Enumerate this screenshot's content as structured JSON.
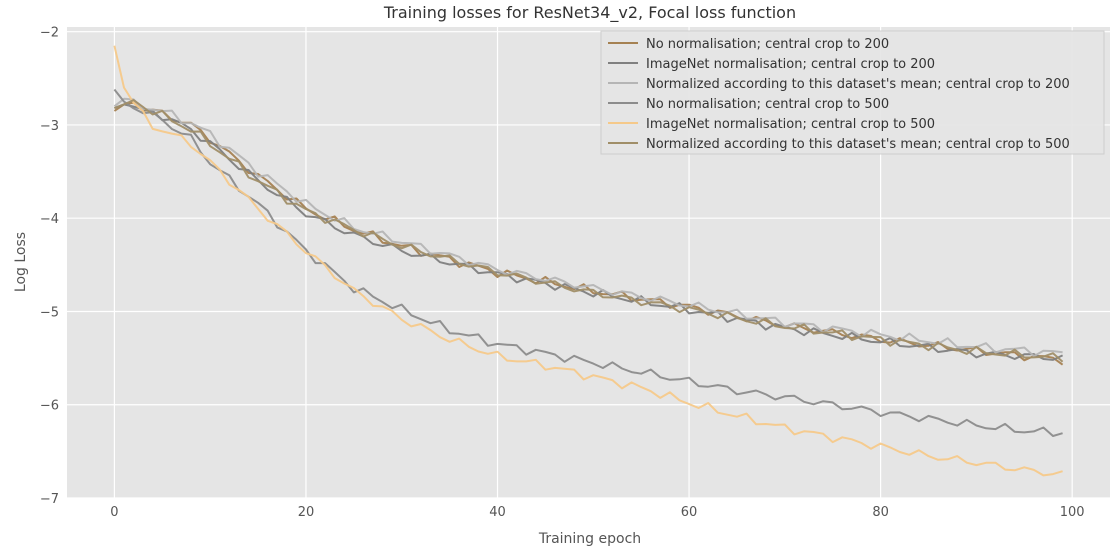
{
  "chart_data": {
    "type": "line",
    "title": "Training losses for ResNet34_v2, Focal loss function",
    "xlabel": "Training epoch",
    "ylabel": "Log Loss",
    "xlim": [
      -4.95,
      103.95
    ],
    "ylim": [
      -7,
      -1.95
    ],
    "xticks": [
      0,
      20,
      40,
      60,
      80,
      100
    ],
    "xtick_labels": [
      "0",
      "20",
      "40",
      "60",
      "80",
      "100"
    ],
    "yticks": [
      -7,
      -6,
      -5,
      -4,
      -3,
      -2
    ],
    "ytick_labels": [
      "−7",
      "−6",
      "−5",
      "−4",
      "−3",
      "−2"
    ],
    "grid": true,
    "legend_position": "top-right",
    "background": "#e5e5e5",
    "series": [
      {
        "name": "No normalisation;  central crop to 200",
        "color": "#a58152",
        "anchors": [
          [
            0,
            -2.85
          ],
          [
            1,
            -2.78
          ],
          [
            2,
            -2.75
          ],
          [
            3,
            -2.82
          ],
          [
            5,
            -2.88
          ],
          [
            8,
            -3.0
          ],
          [
            10,
            -3.15
          ],
          [
            15,
            -3.55
          ],
          [
            20,
            -3.9
          ],
          [
            25,
            -4.12
          ],
          [
            30,
            -4.3
          ],
          [
            40,
            -4.58
          ],
          [
            50,
            -4.78
          ],
          [
            60,
            -4.95
          ],
          [
            70,
            -5.15
          ],
          [
            80,
            -5.3
          ],
          [
            90,
            -5.42
          ],
          [
            99,
            -5.52
          ]
        ]
      },
      {
        "name": "ImageNet normalisation;  central crop to 200",
        "color": "#808080",
        "anchors": [
          [
            0,
            -2.82
          ],
          [
            1,
            -2.78
          ],
          [
            2,
            -2.8
          ],
          [
            3,
            -2.85
          ],
          [
            5,
            -2.9
          ],
          [
            8,
            -3.05
          ],
          [
            10,
            -3.2
          ],
          [
            15,
            -3.6
          ],
          [
            20,
            -3.95
          ],
          [
            25,
            -4.18
          ],
          [
            30,
            -4.35
          ],
          [
            40,
            -4.6
          ],
          [
            50,
            -4.8
          ],
          [
            60,
            -4.98
          ],
          [
            70,
            -5.18
          ],
          [
            80,
            -5.32
          ],
          [
            90,
            -5.45
          ],
          [
            99,
            -5.5
          ]
        ]
      },
      {
        "name": "Normalized according to this dataset's mean;  central crop to 200",
        "color": "#b5b5b5",
        "anchors": [
          [
            0,
            -2.8
          ],
          [
            1,
            -2.72
          ],
          [
            2,
            -2.78
          ],
          [
            3,
            -2.8
          ],
          [
            5,
            -2.85
          ],
          [
            8,
            -2.98
          ],
          [
            10,
            -3.1
          ],
          [
            15,
            -3.5
          ],
          [
            20,
            -3.85
          ],
          [
            25,
            -4.1
          ],
          [
            30,
            -4.25
          ],
          [
            40,
            -4.55
          ],
          [
            50,
            -4.75
          ],
          [
            60,
            -4.93
          ],
          [
            70,
            -5.12
          ],
          [
            80,
            -5.25
          ],
          [
            90,
            -5.38
          ],
          [
            99,
            -5.45
          ]
        ]
      },
      {
        "name": "No normalisation;  central crop to 500",
        "color": "#8c8c8c",
        "anchors": [
          [
            0,
            -2.62
          ],
          [
            1,
            -2.75
          ],
          [
            2,
            -2.8
          ],
          [
            3,
            -2.85
          ],
          [
            5,
            -2.95
          ],
          [
            8,
            -3.15
          ],
          [
            10,
            -3.4
          ],
          [
            15,
            -3.85
          ],
          [
            20,
            -4.35
          ],
          [
            25,
            -4.75
          ],
          [
            30,
            -4.98
          ],
          [
            35,
            -5.2
          ],
          [
            40,
            -5.35
          ],
          [
            45,
            -5.45
          ],
          [
            50,
            -5.55
          ],
          [
            55,
            -5.65
          ],
          [
            60,
            -5.75
          ],
          [
            65,
            -5.85
          ],
          [
            70,
            -5.92
          ],
          [
            75,
            -6.0
          ],
          [
            80,
            -6.08
          ],
          [
            85,
            -6.15
          ],
          [
            90,
            -6.22
          ],
          [
            95,
            -6.28
          ],
          [
            99,
            -6.3
          ]
        ]
      },
      {
        "name": "ImageNet normalisation;  central crop to 500",
        "color": "#f5c98a",
        "anchors": [
          [
            0,
            -2.15
          ],
          [
            1,
            -2.6
          ],
          [
            2,
            -2.75
          ],
          [
            3,
            -2.9
          ],
          [
            4,
            -3.02
          ],
          [
            5,
            -3.05
          ],
          [
            8,
            -3.2
          ],
          [
            10,
            -3.4
          ],
          [
            15,
            -3.9
          ],
          [
            20,
            -4.35
          ],
          [
            25,
            -4.78
          ],
          [
            30,
            -5.08
          ],
          [
            35,
            -5.3
          ],
          [
            40,
            -5.48
          ],
          [
            45,
            -5.58
          ],
          [
            50,
            -5.7
          ],
          [
            55,
            -5.82
          ],
          [
            60,
            -5.98
          ],
          [
            65,
            -6.12
          ],
          [
            70,
            -6.25
          ],
          [
            75,
            -6.35
          ],
          [
            80,
            -6.45
          ],
          [
            85,
            -6.55
          ],
          [
            90,
            -6.62
          ],
          [
            95,
            -6.7
          ],
          [
            99,
            -6.75
          ]
        ]
      },
      {
        "name": "Normalized according to this dataset's mean;  central crop to 500",
        "color": "#a08e68",
        "anchors": [
          [
            0,
            -2.82
          ],
          [
            1,
            -2.78
          ],
          [
            2,
            -2.74
          ],
          [
            3,
            -2.8
          ],
          [
            5,
            -2.9
          ],
          [
            8,
            -3.05
          ],
          [
            10,
            -3.2
          ],
          [
            15,
            -3.6
          ],
          [
            20,
            -3.92
          ],
          [
            25,
            -4.12
          ],
          [
            30,
            -4.3
          ],
          [
            40,
            -4.58
          ],
          [
            50,
            -4.8
          ],
          [
            60,
            -4.98
          ],
          [
            70,
            -5.16
          ],
          [
            80,
            -5.3
          ],
          [
            90,
            -5.43
          ],
          [
            99,
            -5.5
          ]
        ]
      }
    ]
  }
}
